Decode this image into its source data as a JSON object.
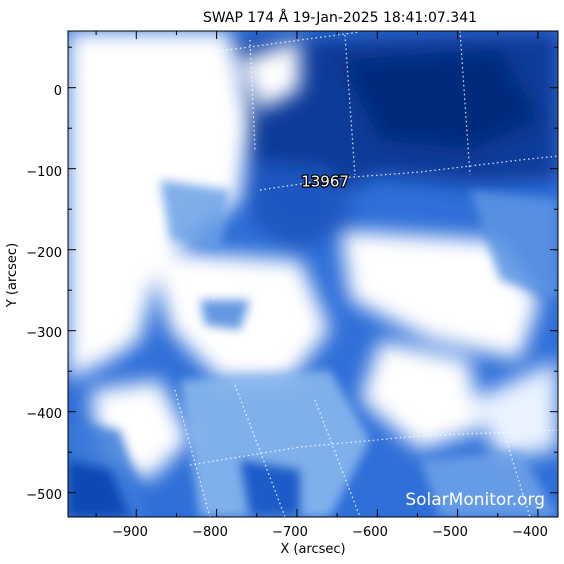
{
  "title": "SWAP 174 Å 19-Jan-2025 18:41:07.341",
  "xlabel": "X (arcsec)",
  "ylabel": "Y (arcsec)",
  "x_ticks": [
    "−900",
    "−800",
    "−700",
    "−600",
    "−500",
    "−400"
  ],
  "y_ticks": [
    "0",
    "−100",
    "−200",
    "−300",
    "−400",
    "−500"
  ],
  "x_range": [
    -985,
    -375
  ],
  "y_range": [
    -530,
    70
  ],
  "active_region": {
    "label": "13967",
    "x": -665,
    "y": -122
  },
  "watermark": "SolarMonitor.org",
  "colors": {
    "dark": "#0b3a9a",
    "mid": "#2f6fd8",
    "light": "#8fbcef",
    "bright": "#ffffff",
    "grid": "#ffffff",
    "frame": "#000000"
  },
  "chart_data": {
    "type": "heatmap",
    "title": "SWAP 174 Å 19-Jan-2025 18:41:07.341",
    "xlabel": "X (arcsec)",
    "ylabel": "Y (arcsec)",
    "xlim": [
      -985,
      -375
    ],
    "ylim": [
      -530,
      70
    ],
    "x_ticks": [
      -900,
      -800,
      -700,
      -600,
      -500,
      -400
    ],
    "y_ticks": [
      0,
      -100,
      -200,
      -300,
      -400,
      -500
    ],
    "colormap": "blue-white (SWAP 174 Å)",
    "grid": "heliographic dotted lines",
    "annotations": [
      {
        "text": "13967",
        "x": -665,
        "y": -122
      }
    ],
    "watermark": "SolarMonitor.org"
  }
}
